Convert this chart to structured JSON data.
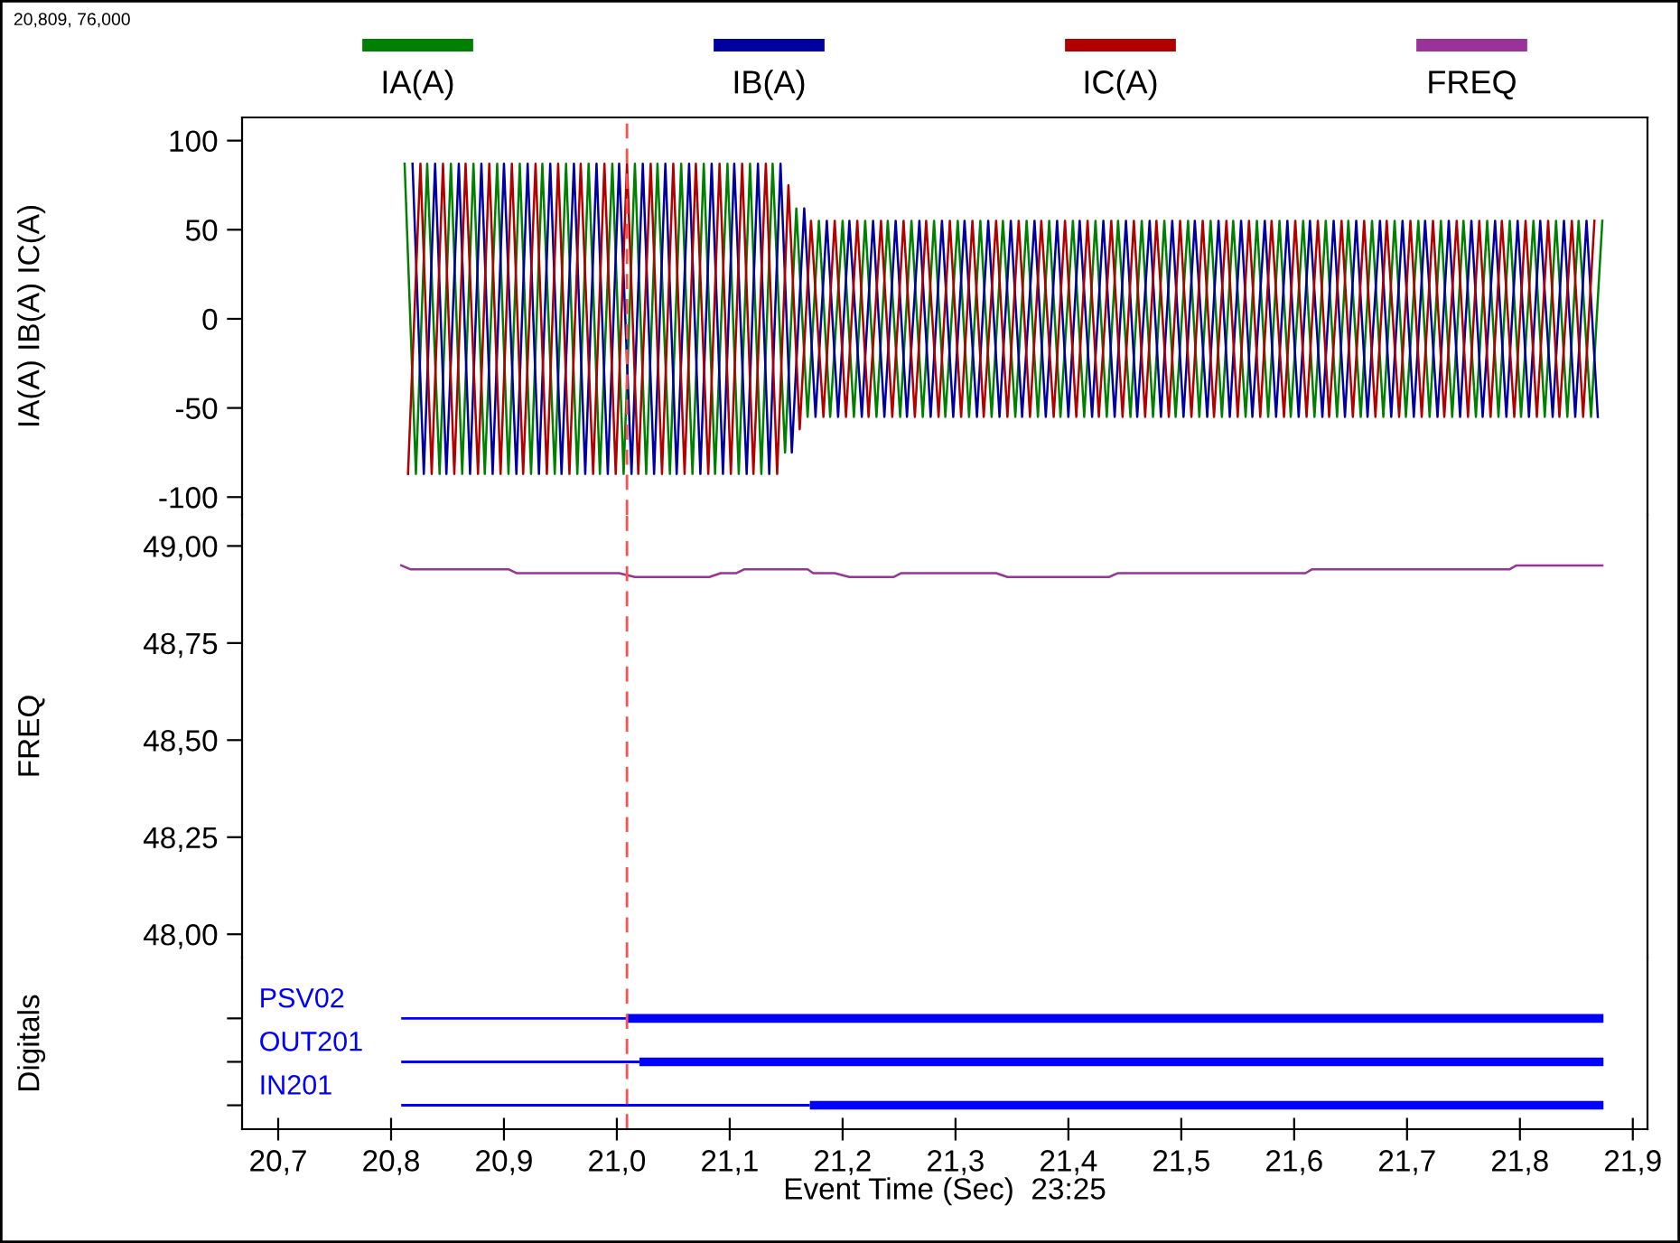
{
  "chart_data": [
    {
      "type": "line",
      "ylabel": "IA(A) IB(A) IC(A)",
      "ylim": [
        -110,
        113
      ],
      "yticks": [
        100,
        50,
        0,
        -50,
        -100
      ],
      "xlim": [
        20.668,
        21.913
      ],
      "tick_labels": "y",
      "legend": "top",
      "annotations": [
        "20,809, 76,000"
      ],
      "ref_lines": [
        {
          "axis": "x",
          "value": 21.009,
          "color": "#ff5050",
          "line_style": "dashed"
        }
      ],
      "series": [
        {
          "name": "IA(A)",
          "color": "#008000",
          "x": [
            20.812,
            20.822,
            20.832,
            20.843,
            20.853,
            20.863,
            20.873,
            20.883,
            20.894,
            20.904,
            20.914,
            20.924,
            20.934,
            20.945,
            20.955,
            20.965,
            20.975,
            20.985,
            20.996,
            21.006,
            21.016,
            21.026,
            21.036,
            21.047,
            21.057,
            21.067,
            21.077,
            21.087,
            21.098,
            21.108,
            21.118,
            21.128,
            21.138,
            21.149,
            21.159,
            21.169,
            21.179,
            21.189,
            21.2,
            21.21,
            21.22,
            21.23,
            21.24,
            21.251,
            21.261,
            21.271,
            21.281,
            21.291,
            21.302,
            21.312,
            21.322,
            21.332,
            21.342,
            21.353,
            21.363,
            21.373,
            21.383,
            21.393,
            21.404,
            21.414,
            21.424,
            21.434,
            21.444,
            21.455,
            21.465,
            21.475,
            21.485,
            21.495,
            21.506,
            21.516,
            21.526,
            21.536,
            21.546,
            21.557,
            21.567,
            21.577,
            21.587,
            21.597,
            21.608,
            21.618,
            21.628,
            21.638,
            21.648,
            21.659,
            21.669,
            21.679,
            21.689,
            21.699,
            21.71,
            21.72,
            21.73,
            21.74,
            21.75,
            21.761,
            21.771,
            21.781,
            21.791,
            21.801,
            21.812,
            21.822,
            21.832,
            21.842,
            21.852,
            21.863,
            21.873
          ],
          "values": [
            87,
            -87,
            87,
            -87,
            87,
            -87,
            87,
            -87,
            87,
            -87,
            87,
            -87,
            87,
            -87,
            87,
            -87,
            87,
            -87,
            87,
            -87,
            87,
            -87,
            87,
            -87,
            87,
            -87,
            87,
            -87,
            87,
            -87,
            87,
            -87,
            87,
            -75,
            62,
            -55,
            55,
            -55,
            55,
            -55,
            55,
            -55,
            55,
            -55,
            55,
            -55,
            55,
            -55,
            55,
            -55,
            55,
            -55,
            55,
            -55,
            55,
            -55,
            55,
            -55,
            55,
            -55,
            55,
            -55,
            55,
            -55,
            55,
            -55,
            55,
            -55,
            55,
            -55,
            55,
            -55,
            55,
            -55,
            55,
            -55,
            55,
            -55,
            55,
            -55,
            55,
            -55,
            55,
            -55,
            55,
            -55,
            55,
            -55,
            55,
            -55,
            55,
            -55,
            55,
            -55,
            55,
            -55,
            55,
            -55,
            55,
            -55,
            55,
            -55,
            55,
            -55,
            55
          ]
        },
        {
          "name": "IB(A)",
          "color": "#0000a0",
          "x": [
            20.819,
            20.829,
            20.839,
            20.849,
            20.86,
            20.87,
            20.88,
            20.89,
            20.9,
            20.911,
            20.921,
            20.931,
            20.941,
            20.951,
            20.962,
            20.972,
            20.982,
            20.992,
            21.002,
            21.013,
            21.023,
            21.033,
            21.043,
            21.053,
            21.064,
            21.074,
            21.084,
            21.094,
            21.104,
            21.115,
            21.125,
            21.135,
            21.145,
            21.155,
            21.166,
            21.176,
            21.186,
            21.196,
            21.206,
            21.217,
            21.227,
            21.237,
            21.247,
            21.257,
            21.268,
            21.278,
            21.288,
            21.298,
            21.308,
            21.319,
            21.329,
            21.339,
            21.349,
            21.359,
            21.37,
            21.38,
            21.39,
            21.4,
            21.41,
            21.421,
            21.431,
            21.441,
            21.451,
            21.461,
            21.472,
            21.482,
            21.492,
            21.502,
            21.512,
            21.523,
            21.533,
            21.543,
            21.553,
            21.563,
            21.574,
            21.584,
            21.594,
            21.604,
            21.614,
            21.625,
            21.635,
            21.645,
            21.655,
            21.665,
            21.676,
            21.686,
            21.696,
            21.706,
            21.716,
            21.727,
            21.737,
            21.747,
            21.757,
            21.767,
            21.778,
            21.788,
            21.798,
            21.808,
            21.818,
            21.829,
            21.839,
            21.849,
            21.859,
            21.869
          ],
          "values": [
            87,
            -87,
            87,
            -87,
            87,
            -87,
            87,
            -87,
            87,
            -87,
            87,
            -87,
            87,
            -87,
            87,
            -87,
            87,
            -87,
            87,
            -87,
            87,
            -87,
            87,
            -87,
            87,
            -87,
            87,
            -87,
            87,
            -87,
            87,
            -87,
            87,
            -75,
            62,
            -55,
            55,
            -55,
            55,
            -55,
            55,
            -55,
            55,
            -55,
            55,
            -55,
            55,
            -55,
            55,
            -55,
            55,
            -55,
            55,
            -55,
            55,
            -55,
            55,
            -55,
            55,
            -55,
            55,
            -55,
            55,
            -55,
            55,
            -55,
            55,
            -55,
            55,
            -55,
            55,
            -55,
            55,
            -55,
            55,
            -55,
            55,
            -55,
            55,
            -55,
            55,
            -55,
            55,
            -55,
            55,
            -55,
            55,
            -55,
            55,
            -55,
            55,
            -55,
            55,
            -55,
            55,
            -55,
            55,
            -55,
            55,
            -55,
            55,
            -55,
            55,
            -55
          ]
        },
        {
          "name": "IC(A)",
          "color": "#b00000",
          "x": [
            20.815,
            20.826,
            20.836,
            20.846,
            20.856,
            20.866,
            20.877,
            20.887,
            20.897,
            20.907,
            20.917,
            20.928,
            20.938,
            20.948,
            20.958,
            20.968,
            20.979,
            20.989,
            20.999,
            21.009,
            21.019,
            21.03,
            21.04,
            21.05,
            21.06,
            21.07,
            21.081,
            21.091,
            21.101,
            21.111,
            21.121,
            21.132,
            21.142,
            21.152,
            21.162,
            21.172,
            21.183,
            21.193,
            21.203,
            21.213,
            21.223,
            21.234,
            21.244,
            21.254,
            21.264,
            21.274,
            21.285,
            21.295,
            21.305,
            21.315,
            21.325,
            21.336,
            21.346,
            21.356,
            21.366,
            21.376,
            21.387,
            21.397,
            21.407,
            21.417,
            21.427,
            21.438,
            21.448,
            21.458,
            21.468,
            21.478,
            21.489,
            21.499,
            21.509,
            21.519,
            21.529,
            21.54,
            21.55,
            21.56,
            21.57,
            21.58,
            21.591,
            21.601,
            21.611,
            21.621,
            21.631,
            21.642,
            21.652,
            21.662,
            21.672,
            21.682,
            21.693,
            21.703,
            21.713,
            21.723,
            21.733,
            21.744,
            21.754,
            21.764,
            21.774,
            21.784,
            21.795,
            21.805,
            21.815,
            21.825,
            21.835,
            21.846,
            21.856,
            21.866
          ],
          "values": [
            -87,
            87,
            -87,
            87,
            -87,
            87,
            -87,
            87,
            -87,
            87,
            -87,
            87,
            -87,
            87,
            -87,
            87,
            -87,
            87,
            -87,
            87,
            -87,
            87,
            -87,
            87,
            -87,
            87,
            -87,
            87,
            -87,
            87,
            -87,
            87,
            -87,
            75,
            -62,
            55,
            -55,
            55,
            -55,
            55,
            -55,
            55,
            -55,
            55,
            -55,
            55,
            -55,
            55,
            -55,
            55,
            -55,
            55,
            -55,
            55,
            -55,
            55,
            -55,
            55,
            -55,
            55,
            -55,
            55,
            -55,
            55,
            -55,
            55,
            -55,
            55,
            -55,
            55,
            -55,
            55,
            -55,
            55,
            -55,
            55,
            -55,
            55,
            -55,
            55,
            -55,
            55,
            -55,
            55,
            -55,
            55,
            -55,
            55,
            -55,
            55,
            -55,
            55,
            -55,
            55,
            -55,
            55,
            -55,
            55,
            -55,
            55,
            -55,
            55,
            -55,
            55
          ]
        }
      ]
    },
    {
      "type": "line",
      "ylabel": "FREQ",
      "ylim": [
        47.94,
        49.08
      ],
      "yticks": [
        {
          "value": 49.0,
          "label": "49,00"
        },
        {
          "value": 48.75,
          "label": "48,75"
        },
        {
          "value": 48.5,
          "label": "48,50"
        },
        {
          "value": 48.25,
          "label": "48,25"
        },
        {
          "value": 48.0,
          "label": "48,00"
        }
      ],
      "xlim": [
        20.668,
        21.913
      ],
      "tick_labels": "y",
      "legend": "top",
      "ref_lines": [
        {
          "axis": "x",
          "value": 21.009,
          "color": "#ff5050",
          "line_style": "dashed"
        }
      ],
      "series": [
        {
          "name": "FREQ",
          "color": "#993399",
          "x": [
            20.809,
            20.817,
            20.904,
            20.911,
            21.002,
            21.016,
            21.082,
            21.092,
            21.106,
            21.113,
            21.169,
            21.174,
            21.193,
            21.206,
            21.245,
            21.252,
            21.336,
            21.346,
            21.436,
            21.444,
            21.61,
            21.616,
            21.791,
            21.797,
            21.873
          ],
          "values": [
            48.95,
            48.94,
            48.94,
            48.93,
            48.93,
            48.92,
            48.92,
            48.93,
            48.93,
            48.94,
            48.94,
            48.93,
            48.93,
            48.92,
            48.92,
            48.93,
            48.93,
            48.92,
            48.92,
            48.93,
            48.93,
            48.94,
            48.94,
            48.95,
            48.95
          ]
        }
      ]
    },
    {
      "type": "bar",
      "orientation": "horizontal",
      "ylabel": "Digitals",
      "xlabel": "Event Time (Sec)  23:25",
      "categories": [
        "PSV02",
        "OUT201",
        "IN201"
      ],
      "xlim": [
        20.668,
        21.913
      ],
      "xticks": [
        {
          "value": 20.7,
          "label": "20,7"
        },
        {
          "value": 20.8,
          "label": "20,8"
        },
        {
          "value": 20.9,
          "label": "20,9"
        },
        {
          "value": 21.0,
          "label": "21,0"
        },
        {
          "value": 21.1,
          "label": "21,1"
        },
        {
          "value": 21.2,
          "label": "21,2"
        },
        {
          "value": 21.3,
          "label": "21,3"
        },
        {
          "value": 21.4,
          "label": "21,4"
        },
        {
          "value": 21.5,
          "label": "21,5"
        },
        {
          "value": 21.6,
          "label": "21,6"
        },
        {
          "value": 21.7,
          "label": "21,7"
        },
        {
          "value": 21.8,
          "label": "21,8"
        },
        {
          "value": 21.9,
          "label": "21,9"
        }
      ],
      "ref_lines": [
        {
          "axis": "x",
          "value": 21.009,
          "color": "#ff5050",
          "line_style": "dashed"
        }
      ],
      "series": [
        {
          "color": "#0000ff",
          "base": [
            20.809,
            20.809,
            20.809
          ],
          "values": [
            0.2,
            0.211,
            0.362
          ]
        },
        {
          "color": "#0000ff",
          "base": [
            21.009,
            21.02,
            21.171
          ],
          "values": [
            0.865,
            0.854,
            0.703
          ]
        }
      ]
    }
  ]
}
